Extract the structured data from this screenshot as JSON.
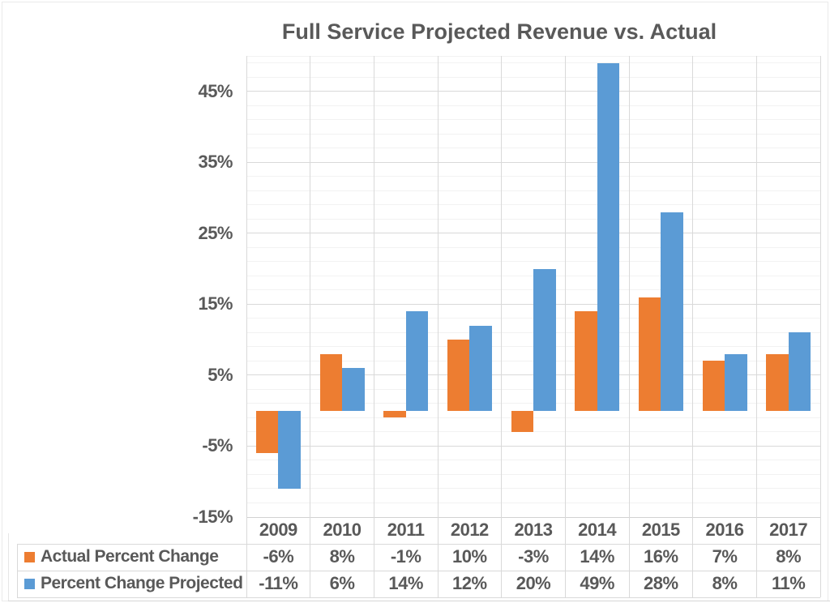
{
  "title": "Full Service Projected Revenue vs. Actual",
  "colors": {
    "actual_series": "#ED7D31",
    "projected_series": "#5B9BD5",
    "text": "#595959",
    "grid_major": "#D9D9D9",
    "grid_minor": "#F2F2F2",
    "axis_line": "#D2D2D2",
    "background": "#FFFFFF"
  },
  "chart_data": {
    "type": "bar",
    "title": "Full Service Projected Revenue vs. Actual",
    "categories": [
      "2009",
      "2010",
      "2011",
      "2012",
      "2013",
      "2014",
      "2015",
      "2016",
      "2017"
    ],
    "series": [
      {
        "name": "Actual Percent Change",
        "color": "#ED7D31",
        "values": [
          -6,
          8,
          -1,
          10,
          -3,
          14,
          16,
          7,
          8
        ],
        "display_values": [
          "-6%",
          "8%",
          "-1%",
          "10%",
          "-3%",
          "14%",
          "16%",
          "7%",
          "8%"
        ]
      },
      {
        "name": "Percent Change Projected",
        "color": "#5B9BD5",
        "values": [
          -11,
          6,
          14,
          12,
          20,
          49,
          28,
          8,
          11
        ],
        "display_values": [
          "-11%",
          "6%",
          "14%",
          "12%",
          "20%",
          "49%",
          "28%",
          "8%",
          "11%"
        ]
      }
    ],
    "y_axis": {
      "min": -15,
      "max": 50,
      "major_unit": 10,
      "minor_unit": 2,
      "ticks": [
        {
          "value": 45,
          "label": "45%"
        },
        {
          "value": 35,
          "label": "35%"
        },
        {
          "value": 25,
          "label": "25%"
        },
        {
          "value": 15,
          "label": "15%"
        },
        {
          "value": 5,
          "label": "5%"
        },
        {
          "value": -5,
          "label": "-5%"
        },
        {
          "value": -15,
          "label": "-15%"
        }
      ]
    },
    "legend_position": "data-table-left",
    "grid": true
  }
}
